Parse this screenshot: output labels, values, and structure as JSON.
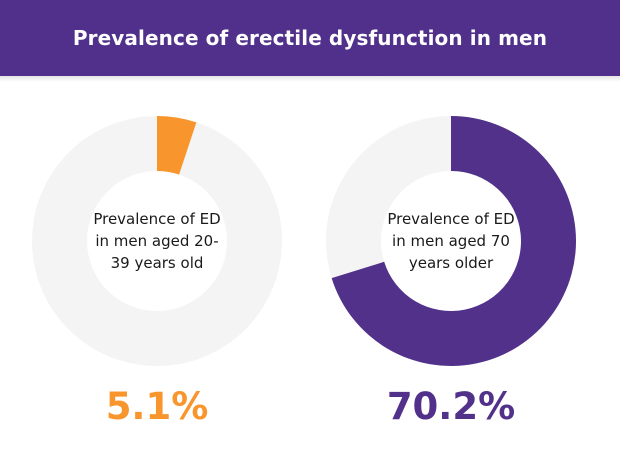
{
  "header": {
    "title": "Prevalence of erectile dysfunction in men"
  },
  "colors": {
    "header_bg": "#50308a",
    "ring_bg": "#f4f4f4",
    "orange": "#f8952d",
    "purple": "#51318a"
  },
  "chart_data": [
    {
      "type": "pie",
      "variant": "donut",
      "label": "Prevalence of ED in men aged 20-39 years old",
      "value": 5.1,
      "unit": "%",
      "value_text": "5.1%",
      "color": "#f8952d"
    },
    {
      "type": "pie",
      "variant": "donut",
      "label": "Prevalence of ED in men aged 70 years older",
      "value": 70.2,
      "unit": "%",
      "value_text": "70.2%",
      "color": "#51318a"
    }
  ]
}
